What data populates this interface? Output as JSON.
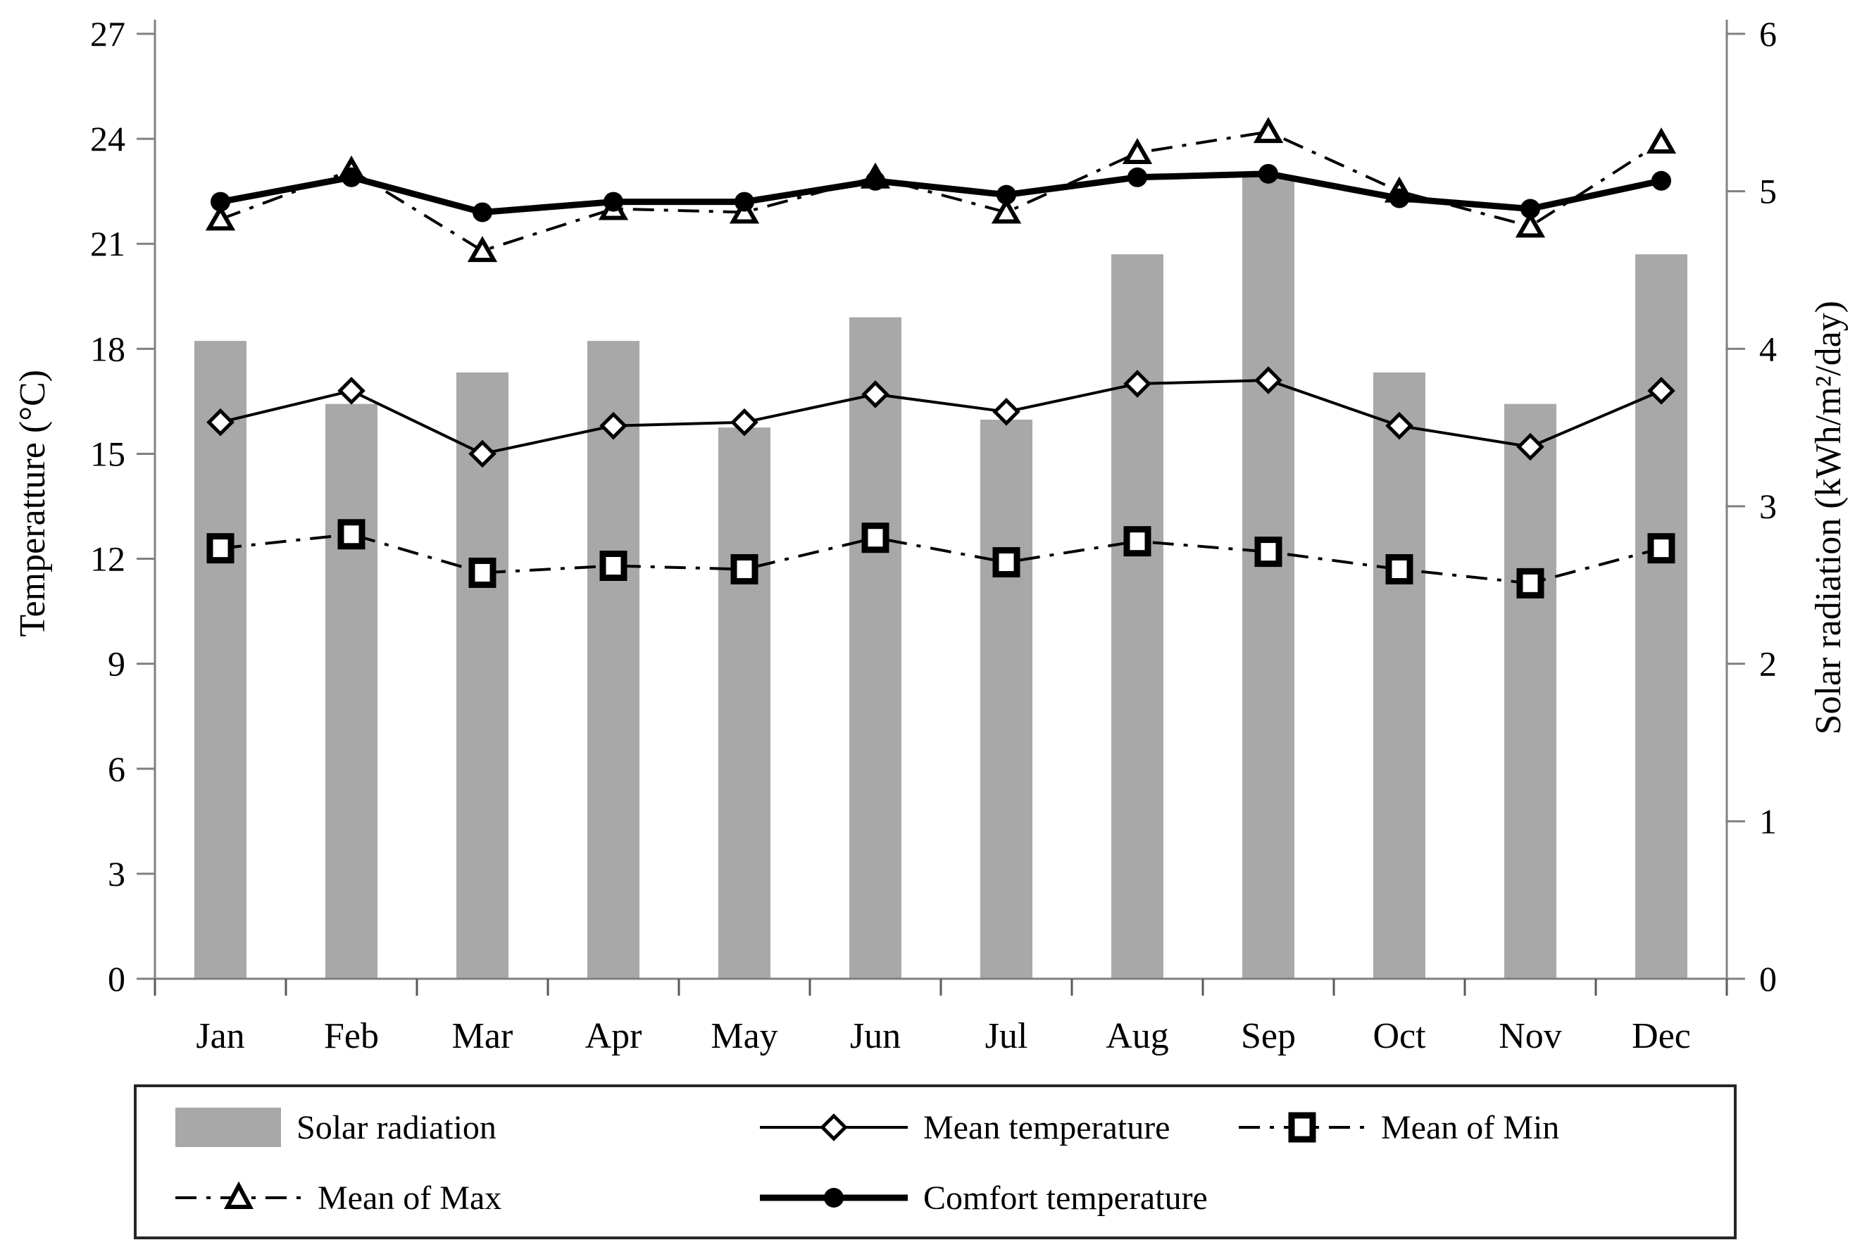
{
  "figure": {
    "type": "combo-bar-line-chart",
    "background": "#ffffff",
    "bar_color": "#a8a8a8",
    "line_color": "#000000",
    "axis_color": "#808080"
  },
  "chart_data": {
    "type": "bar",
    "categories": [
      "Jan",
      "Feb",
      "Mar",
      "Apr",
      "May",
      "Jun",
      "Jul",
      "Aug",
      "Sep",
      "Oct",
      "Nov",
      "Dec"
    ],
    "series": [
      {
        "name": "Solar radiation",
        "type": "bar",
        "axis": "right",
        "color": "#a8a8a8",
        "values": [
          4.05,
          3.65,
          3.85,
          4.05,
          3.5,
          4.2,
          3.55,
          4.6,
          5.1,
          3.85,
          3.65,
          4.6
        ]
      },
      {
        "name": "Mean temperature",
        "type": "line",
        "axis": "left",
        "marker": "open-diamond",
        "line_style": "solid-thin",
        "values": [
          15.9,
          16.8,
          15.0,
          15.8,
          15.9,
          16.7,
          16.2,
          17.0,
          17.1,
          15.8,
          15.2,
          16.8
        ]
      },
      {
        "name": "Mean of Min",
        "type": "line",
        "axis": "left",
        "marker": "open-square",
        "line_style": "dash-dot",
        "values": [
          12.3,
          12.7,
          11.6,
          11.8,
          11.7,
          12.6,
          11.9,
          12.5,
          12.2,
          11.7,
          11.3,
          12.3
        ]
      },
      {
        "name": "Mean of Max",
        "type": "line",
        "axis": "left",
        "marker": "open-triangle",
        "line_style": "dash-dot",
        "values": [
          21.7,
          23.1,
          20.8,
          22.0,
          21.9,
          22.9,
          21.9,
          23.6,
          24.2,
          22.5,
          21.5,
          23.9
        ]
      },
      {
        "name": "Comfort temperature",
        "type": "line",
        "axis": "left",
        "marker": "filled-circle",
        "line_style": "solid-thick",
        "values": [
          22.2,
          22.9,
          21.9,
          22.2,
          22.2,
          22.8,
          22.4,
          22.9,
          23.0,
          22.3,
          22.0,
          22.8
        ]
      }
    ],
    "left_axis": {
      "label": "Temperatture (°C)",
      "min": 0,
      "max": 27,
      "step": 3,
      "ticks": [
        0,
        3,
        6,
        9,
        12,
        15,
        18,
        21,
        24,
        27
      ]
    },
    "right_axis": {
      "label": "Solar radiation (kWh/m²/day)",
      "min": 0,
      "max": 6,
      "step": 1,
      "ticks": [
        0,
        1,
        2,
        3,
        4,
        5,
        6
      ]
    },
    "grid": "off",
    "legend": {
      "position": "bottom",
      "entries": [
        {
          "label": "Solar radiation",
          "sample": "gray-bar-swatch"
        },
        {
          "label": "Mean temperature",
          "sample": "solid-line-open-diamond"
        },
        {
          "label": "Mean of Min",
          "sample": "dash-dot-line-open-square"
        },
        {
          "label": "Mean of Max",
          "sample": "dash-dot-line-open-triangle"
        },
        {
          "label": "Comfort temperature",
          "sample": "thick-solid-line-filled-circle"
        }
      ]
    }
  }
}
